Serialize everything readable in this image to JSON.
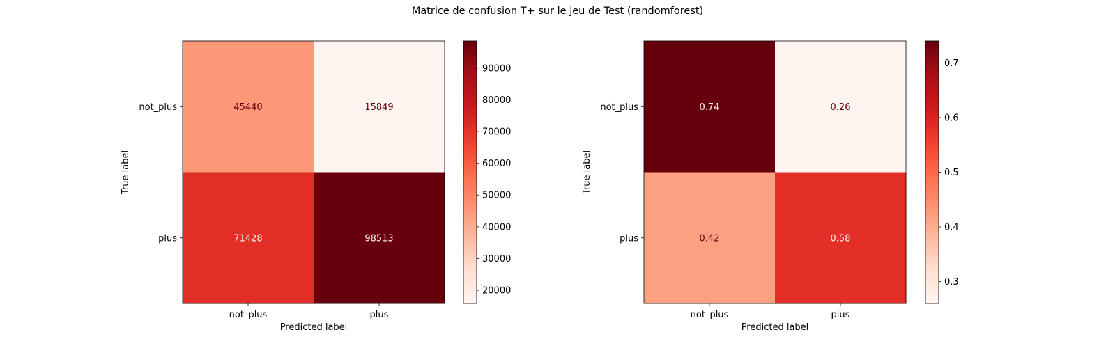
{
  "suptitle": "Matrice de confusion T+ sur le jeu de Test (randomforest)",
  "colormap": {
    "name": "Reds",
    "stops": [
      "#fff5f0",
      "#fee0d2",
      "#fcbba1",
      "#fc9272",
      "#fb6a4a",
      "#ef3b2c",
      "#cb181d",
      "#a50f15",
      "#67000d"
    ]
  },
  "chart_data": [
    {
      "type": "heatmap",
      "title": "",
      "xlabel": "Predicted label",
      "ylabel": "True label",
      "x_categories": [
        "not_plus",
        "plus"
      ],
      "y_categories": [
        "not_plus",
        "plus"
      ],
      "matrix": [
        [
          45440,
          15849
        ],
        [
          71428,
          98513
        ]
      ],
      "cell_labels": [
        [
          "45440",
          "15849"
        ],
        [
          "71428",
          "98513"
        ]
      ],
      "color_range": [
        15849,
        98513
      ],
      "colorbar_ticks": [
        20000,
        30000,
        40000,
        50000,
        60000,
        70000,
        80000,
        90000
      ],
      "colorbar_tick_labels": [
        "20000",
        "30000",
        "40000",
        "50000",
        "60000",
        "70000",
        "80000",
        "90000"
      ],
      "grid": false
    },
    {
      "type": "heatmap",
      "title": "",
      "xlabel": "Predicted label",
      "ylabel": "True label",
      "x_categories": [
        "not_plus",
        "plus"
      ],
      "y_categories": [
        "not_plus",
        "plus"
      ],
      "matrix": [
        [
          0.74,
          0.26
        ],
        [
          0.42,
          0.58
        ]
      ],
      "cell_labels": [
        [
          "0.74",
          "0.26"
        ],
        [
          "0.42",
          "0.58"
        ]
      ],
      "color_range": [
        0.26,
        0.74
      ],
      "colorbar_ticks": [
        0.3,
        0.4,
        0.5,
        0.6,
        0.7
      ],
      "colorbar_tick_labels": [
        "0.3",
        "0.4",
        "0.5",
        "0.6",
        "0.7"
      ],
      "grid": false
    }
  ]
}
